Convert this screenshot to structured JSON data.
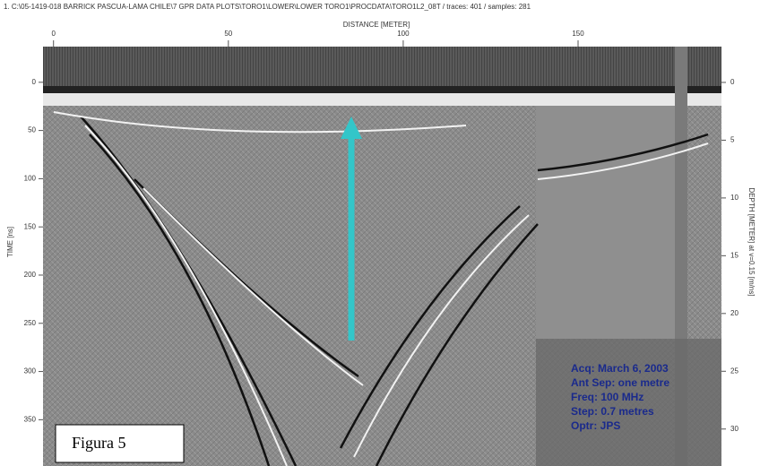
{
  "chart_data": {
    "type": "radargram",
    "title": "1. C:\\05-1419-018 BARRICK PASCUA-LAMA CHILE\\7 GPR DATA PLOTS\\TORO1\\LOWER\\LOWER TORO1\\PROCDATA\\TORO1L2_08T / traces: 401 / samples: 281",
    "x_label": "DISTANCE [METER]",
    "y_label": "TIME [ns]",
    "y2_label": "DEPTH [METER] at v=0.15 [m/ns]",
    "xlim": [
      -3,
      191
    ],
    "xticks": [
      0,
      50,
      100,
      150
    ],
    "ylim": [
      -37,
      398
    ],
    "yticks": [
      0,
      50,
      100,
      150,
      200,
      250,
      300,
      350
    ],
    "y2lim": [
      -3.1,
      33.2
    ],
    "y2ticks": [
      0,
      5,
      10,
      15,
      20,
      25,
      30
    ],
    "annotations": [
      "Acq: March 6, 2003",
      "Ant Sep: one metre",
      "Freq: 100 MHz",
      "Step: 0.7 metres",
      "Optr: JPS"
    ],
    "figure_label": "Figura 5"
  }
}
